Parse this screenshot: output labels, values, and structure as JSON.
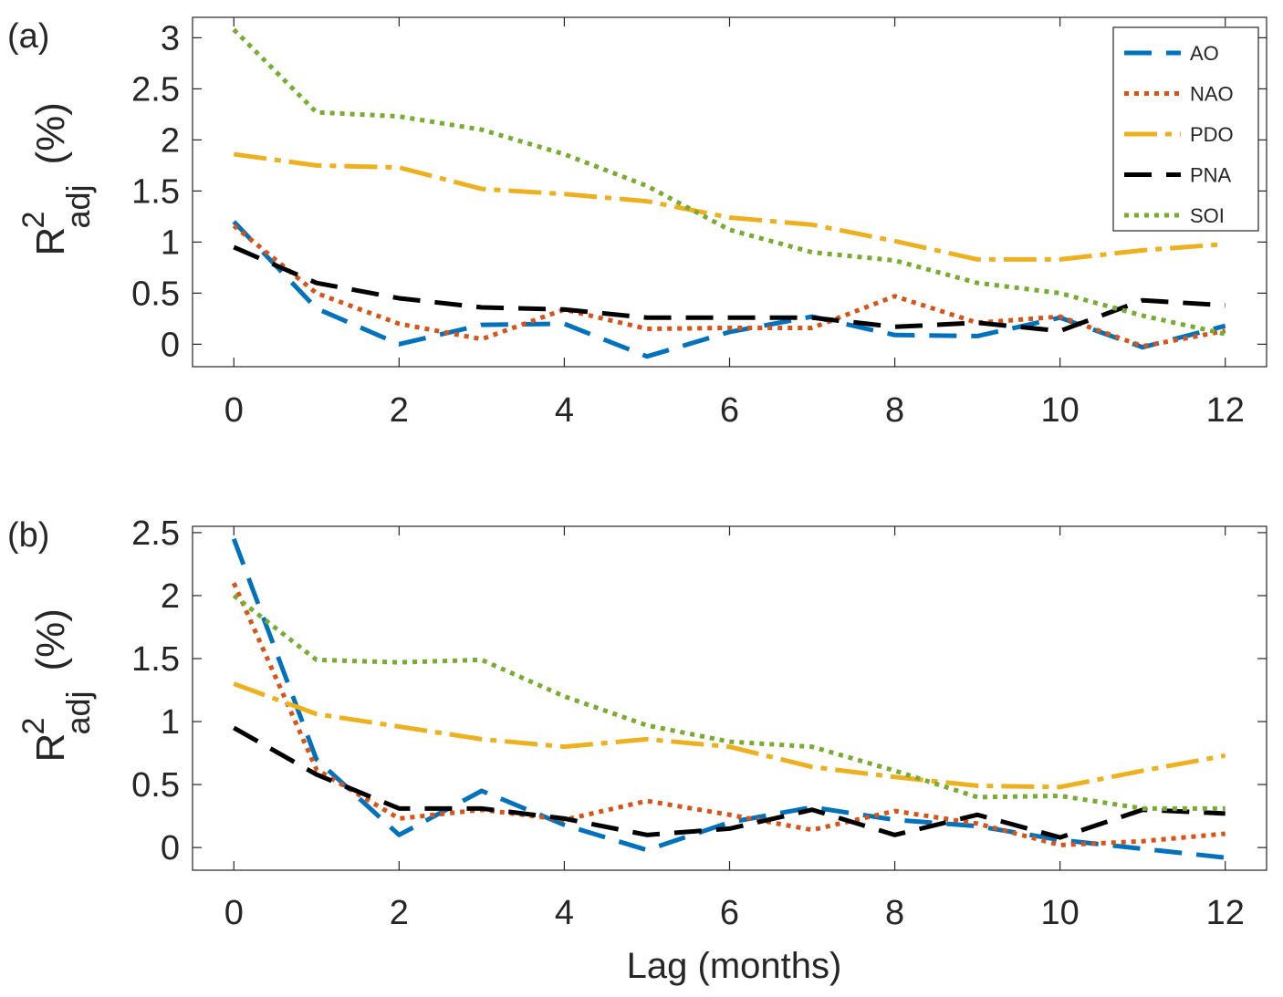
{
  "chart_data": [
    {
      "type": "line",
      "panel_label": "(a)",
      "x": [
        0,
        1,
        2,
        3,
        4,
        5,
        6,
        7,
        8,
        9,
        10,
        11,
        12
      ],
      "xlim": [
        -0.5,
        12.5
      ],
      "ylim": [
        -0.22,
        3.2
      ],
      "xticks": [
        "0",
        "2",
        "4",
        "6",
        "8",
        "10",
        "12"
      ],
      "yticks": [
        "0",
        "0.5",
        "1",
        "1.5",
        "2",
        "2.5",
        "3"
      ],
      "ylabel": {
        "main": "R",
        "sup": "2",
        "sub": "adj",
        "unit": "(%)"
      },
      "xlabel": "",
      "legend": "top-right",
      "series": [
        {
          "name": "AO",
          "color": "#0072bd",
          "style": "dashed",
          "values": [
            1.2,
            0.35,
            0.0,
            0.19,
            0.2,
            -0.12,
            0.12,
            0.27,
            0.09,
            0.08,
            0.26,
            -0.03,
            0.18
          ]
        },
        {
          "name": "NAO",
          "color": "#d95319",
          "style": "dotted",
          "values": [
            1.16,
            0.5,
            0.2,
            0.05,
            0.34,
            0.15,
            0.16,
            0.16,
            0.47,
            0.21,
            0.27,
            -0.02,
            0.13
          ]
        },
        {
          "name": "PDO",
          "color": "#edb120",
          "style": "dashdot",
          "values": [
            1.86,
            1.75,
            1.73,
            1.52,
            1.47,
            1.4,
            1.24,
            1.17,
            1.01,
            0.83,
            0.83,
            0.92,
            0.98
          ]
        },
        {
          "name": "PNA",
          "color": "#000000",
          "style": "dashed",
          "values": [
            0.95,
            0.6,
            0.45,
            0.36,
            0.34,
            0.26,
            0.26,
            0.26,
            0.17,
            0.21,
            0.13,
            0.43,
            0.38
          ]
        },
        {
          "name": "SOI",
          "color": "#77ac30",
          "style": "dotted",
          "values": [
            3.08,
            2.27,
            2.23,
            2.1,
            1.86,
            1.55,
            1.12,
            0.9,
            0.82,
            0.6,
            0.5,
            0.28,
            0.1
          ]
        }
      ]
    },
    {
      "type": "line",
      "panel_label": "(b)",
      "x": [
        0,
        1,
        2,
        3,
        4,
        5,
        6,
        7,
        8,
        9,
        10,
        11,
        12
      ],
      "xlim": [
        -0.5,
        12.5
      ],
      "ylim": [
        -0.18,
        2.55
      ],
      "xticks": [
        "0",
        "2",
        "4",
        "6",
        "8",
        "10",
        "12"
      ],
      "yticks": [
        "0",
        "0.5",
        "1",
        "1.5",
        "2",
        "2.5"
      ],
      "ylabel": {
        "main": "R",
        "sup": "2",
        "sub": "adj",
        "unit": "(%)"
      },
      "xlabel": "Lag (months)",
      "series": [
        {
          "name": "AO",
          "color": "#0072bd",
          "style": "dashed",
          "values": [
            2.45,
            0.7,
            0.1,
            0.45,
            0.18,
            -0.02,
            0.2,
            0.32,
            0.22,
            0.17,
            0.06,
            -0.01,
            -0.08
          ]
        },
        {
          "name": "NAO",
          "color": "#d95319",
          "style": "dotted",
          "values": [
            2.1,
            0.62,
            0.23,
            0.3,
            0.22,
            0.37,
            0.26,
            0.14,
            0.29,
            0.19,
            0.02,
            0.05,
            0.11
          ]
        },
        {
          "name": "PDO",
          "color": "#edb120",
          "style": "dashdot",
          "values": [
            1.3,
            1.06,
            0.96,
            0.86,
            0.8,
            0.86,
            0.8,
            0.64,
            0.56,
            0.49,
            0.48,
            0.61,
            0.73
          ]
        },
        {
          "name": "PNA",
          "color": "#000000",
          "style": "dashed",
          "values": [
            0.95,
            0.58,
            0.31,
            0.31,
            0.23,
            0.1,
            0.15,
            0.3,
            0.1,
            0.26,
            0.08,
            0.3,
            0.27
          ]
        },
        {
          "name": "SOI",
          "color": "#77ac30",
          "style": "dotted",
          "values": [
            2.0,
            1.49,
            1.47,
            1.49,
            1.2,
            0.97,
            0.84,
            0.8,
            0.61,
            0.4,
            0.41,
            0.31,
            0.31
          ]
        }
      ]
    }
  ]
}
